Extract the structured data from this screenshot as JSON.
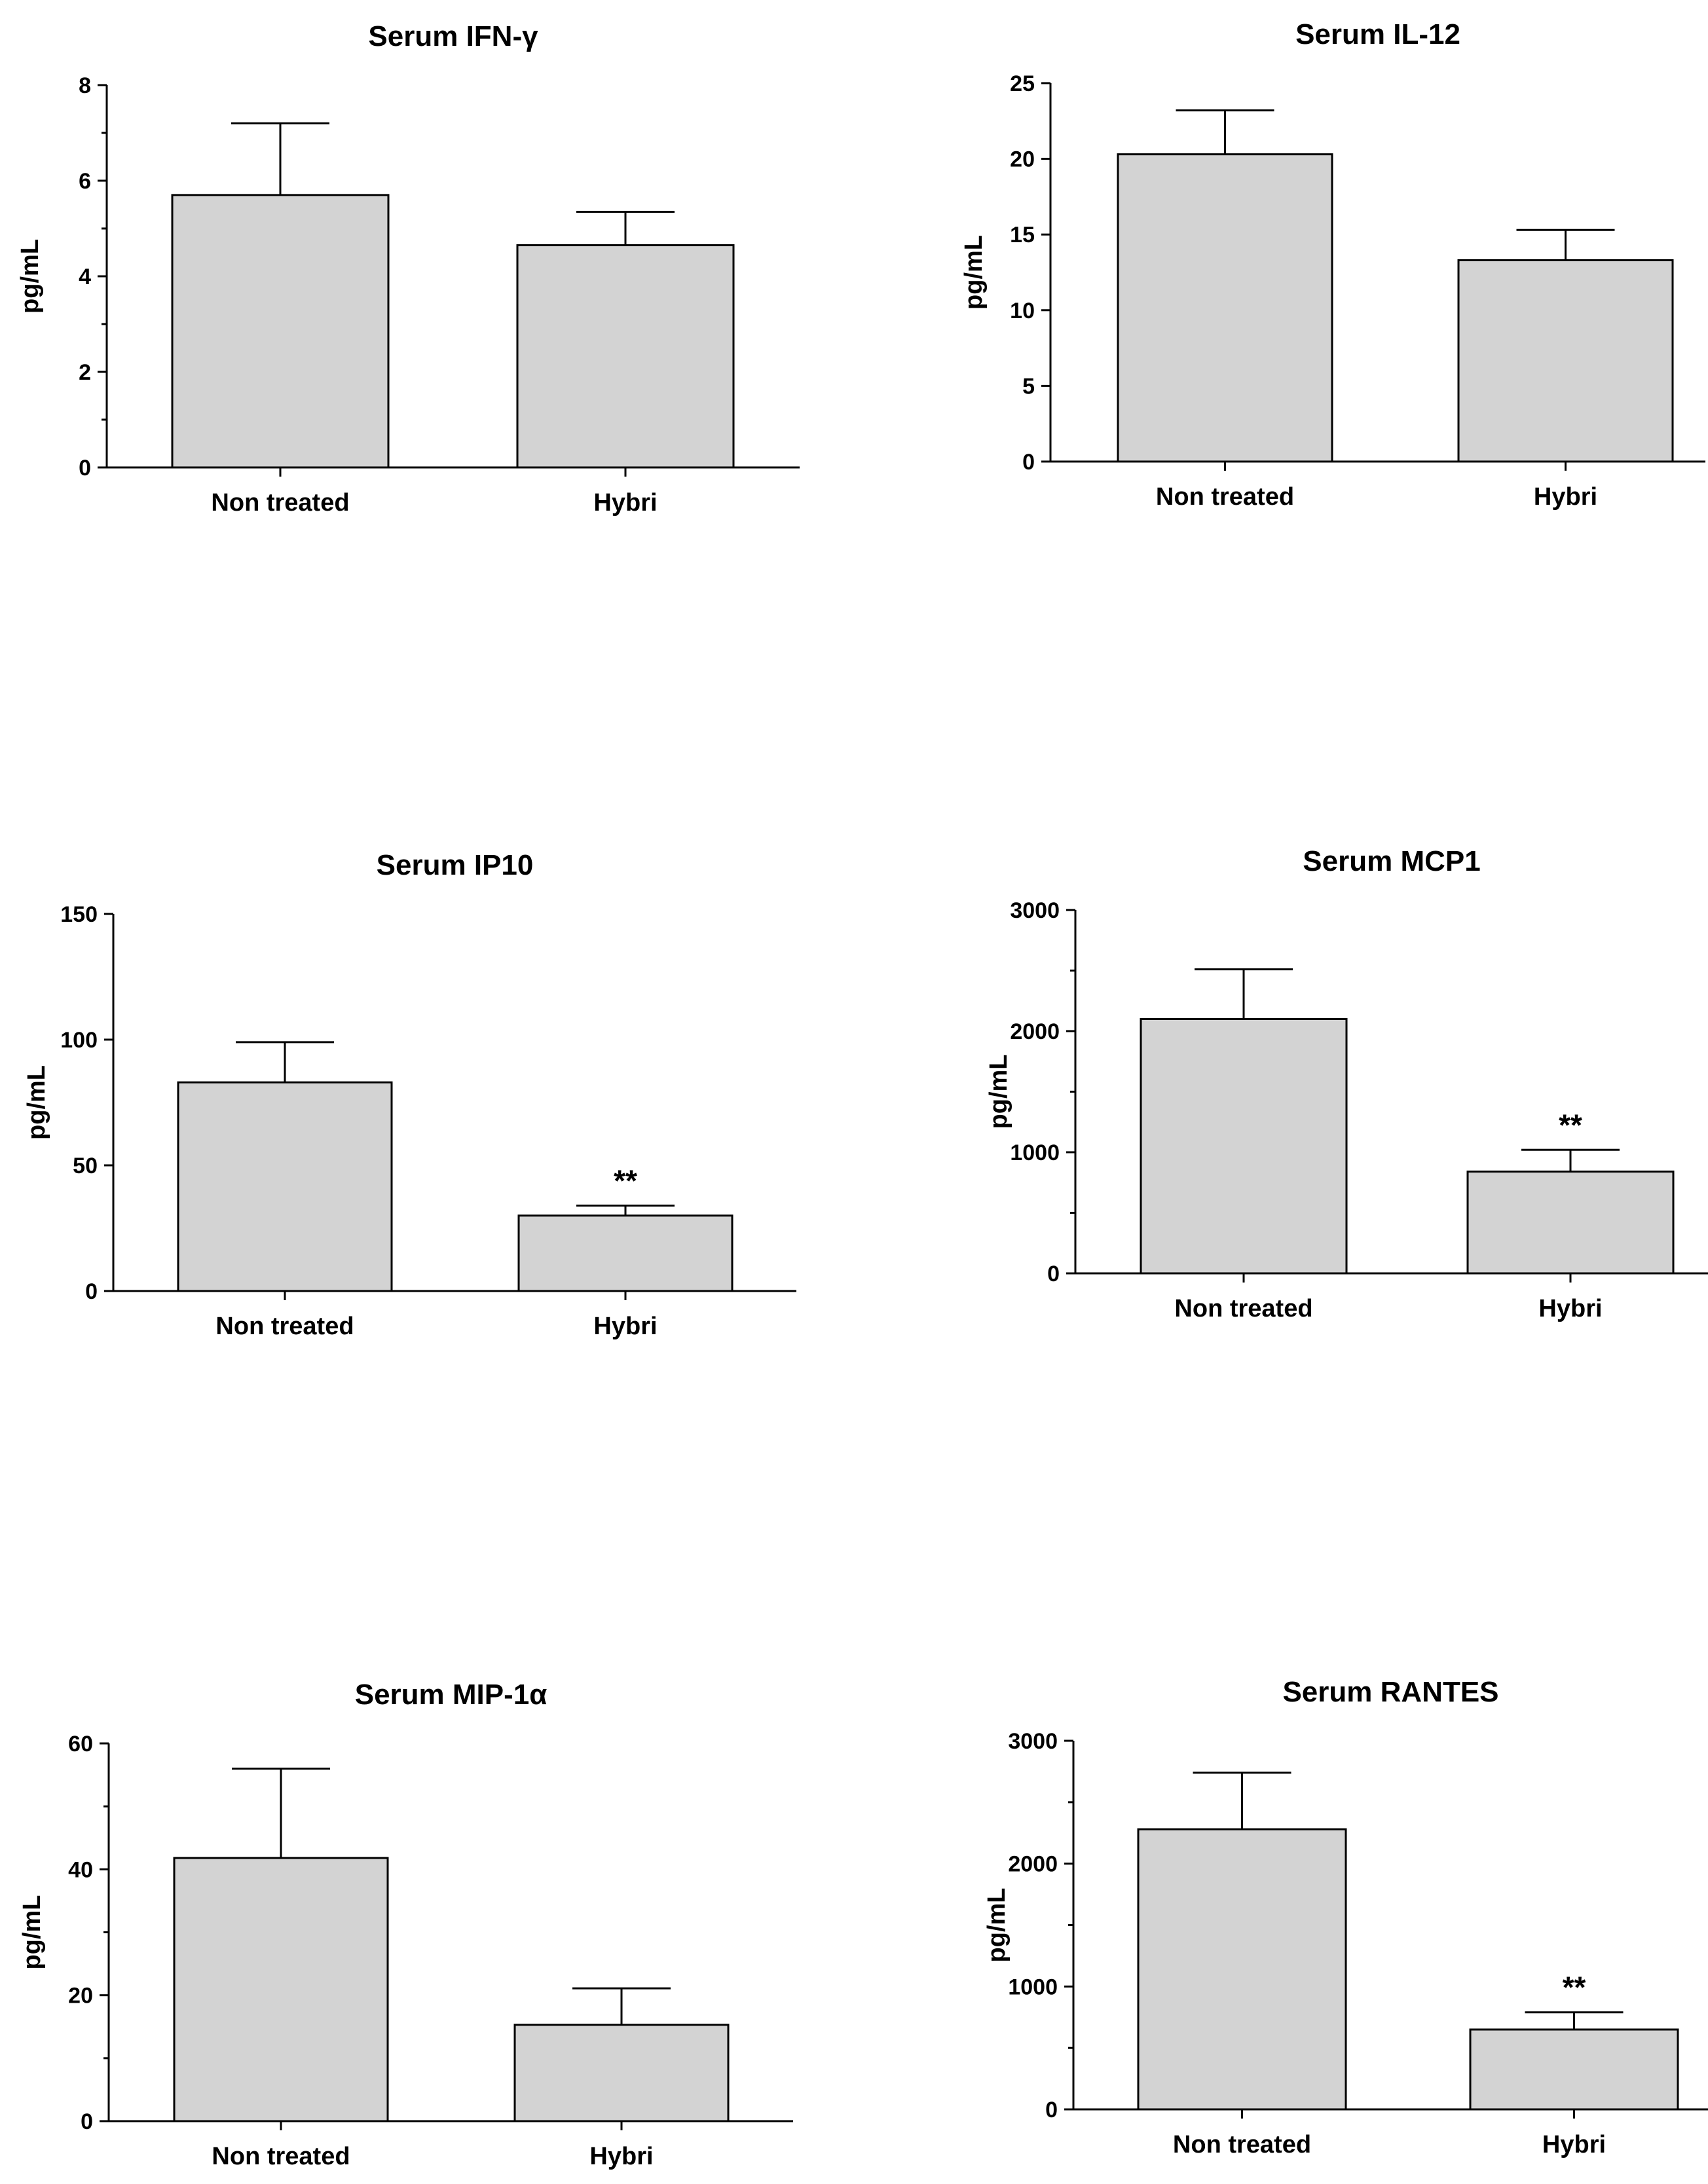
{
  "colors": {
    "bar_fill": "#d3d3d3",
    "stroke": "#000000"
  },
  "chart_data": [
    {
      "type": "bar",
      "title": "Serum IFN-γ",
      "ylabel": "pg/mL",
      "xlabel": "",
      "categories": [
        "Non treated",
        "Hybri"
      ],
      "values": [
        5.7,
        4.65
      ],
      "errors": [
        1.5,
        0.7
      ],
      "significance": [
        "",
        ""
      ],
      "ylim": [
        0,
        8
      ],
      "yticks": [
        0,
        2,
        4,
        6,
        8
      ],
      "minor_ticks": 1
    },
    {
      "type": "bar",
      "title": "Serum IL-12",
      "ylabel": "pg/mL",
      "xlabel": "",
      "categories": [
        "Non treated",
        "Hybri"
      ],
      "values": [
        20.3,
        13.3
      ],
      "errors": [
        2.9,
        2.0
      ],
      "significance": [
        "",
        ""
      ],
      "ylim": [
        0,
        25
      ],
      "yticks": [
        0,
        5,
        10,
        15,
        20,
        25
      ],
      "minor_ticks": 0
    },
    {
      "type": "bar",
      "title": "Serum IP10",
      "ylabel": "pg/mL",
      "xlabel": "",
      "categories": [
        "Non treated",
        "Hybri"
      ],
      "values": [
        83,
        30
      ],
      "errors": [
        16,
        4
      ],
      "significance": [
        "",
        "**"
      ],
      "ylim": [
        0,
        150
      ],
      "yticks": [
        0,
        50,
        100,
        150
      ],
      "minor_ticks": 0
    },
    {
      "type": "bar",
      "title": "Serum MCP1",
      "ylabel": "pg/mL",
      "xlabel": "",
      "categories": [
        "Non treated",
        "Hybri"
      ],
      "values": [
        2100,
        840
      ],
      "errors": [
        410,
        180
      ],
      "significance": [
        "",
        "**"
      ],
      "ylim": [
        0,
        3000
      ],
      "yticks": [
        0,
        1000,
        2000,
        3000
      ],
      "minor_ticks": 1
    },
    {
      "type": "bar",
      "title": "Serum MIP-1α",
      "ylabel": "pg/mL",
      "xlabel": "",
      "categories": [
        "Non treated",
        "Hybri"
      ],
      "values": [
        41.8,
        15.3
      ],
      "errors": [
        14.2,
        5.8
      ],
      "significance": [
        "",
        ""
      ],
      "ylim": [
        0,
        60
      ],
      "yticks": [
        0,
        20,
        40,
        60
      ],
      "minor_ticks": 1
    },
    {
      "type": "bar",
      "title": "Serum RANTES",
      "ylabel": "pg/mL",
      "xlabel": "",
      "categories": [
        "Non treated",
        "Hybri"
      ],
      "values": [
        2280,
        650
      ],
      "errors": [
        460,
        140
      ],
      "significance": [
        "",
        "**"
      ],
      "ylim": [
        0,
        3000
      ],
      "yticks": [
        0,
        1000,
        2000,
        3000
      ],
      "minor_ticks": 1
    }
  ]
}
